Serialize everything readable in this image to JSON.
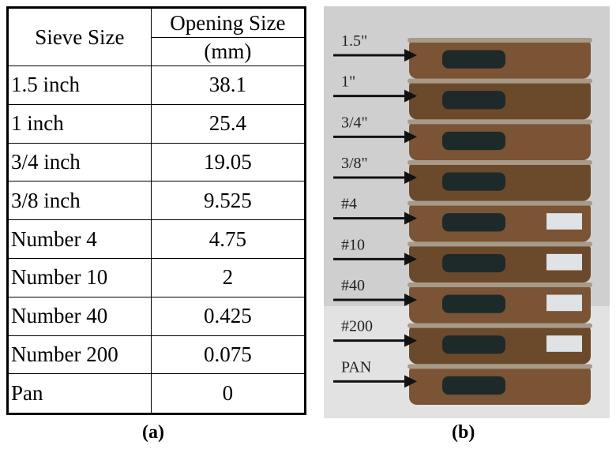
{
  "table": {
    "header": {
      "sieve": "Sieve Size",
      "opening": "Opening Size",
      "unit": "(mm)"
    },
    "rows": [
      [
        "1.5 inch",
        "38.1"
      ],
      [
        "1 inch",
        "25.4"
      ],
      [
        "3/4 inch",
        "19.05"
      ],
      [
        "3/8 inch",
        "9.525"
      ],
      [
        "Number 4",
        "4.75"
      ],
      [
        "Number 10",
        "2"
      ],
      [
        "Number 40",
        "0.425"
      ],
      [
        "Number 200",
        "0.075"
      ],
      [
        "Pan",
        "0"
      ]
    ]
  },
  "photo": {
    "labels": [
      "1.5\"",
      "1\"",
      "3/4\"",
      "3/8\"",
      "#4",
      "#10",
      "#40",
      "#200",
      "PAN"
    ]
  },
  "captions": {
    "a": "(a)",
    "b": "(b)"
  }
}
